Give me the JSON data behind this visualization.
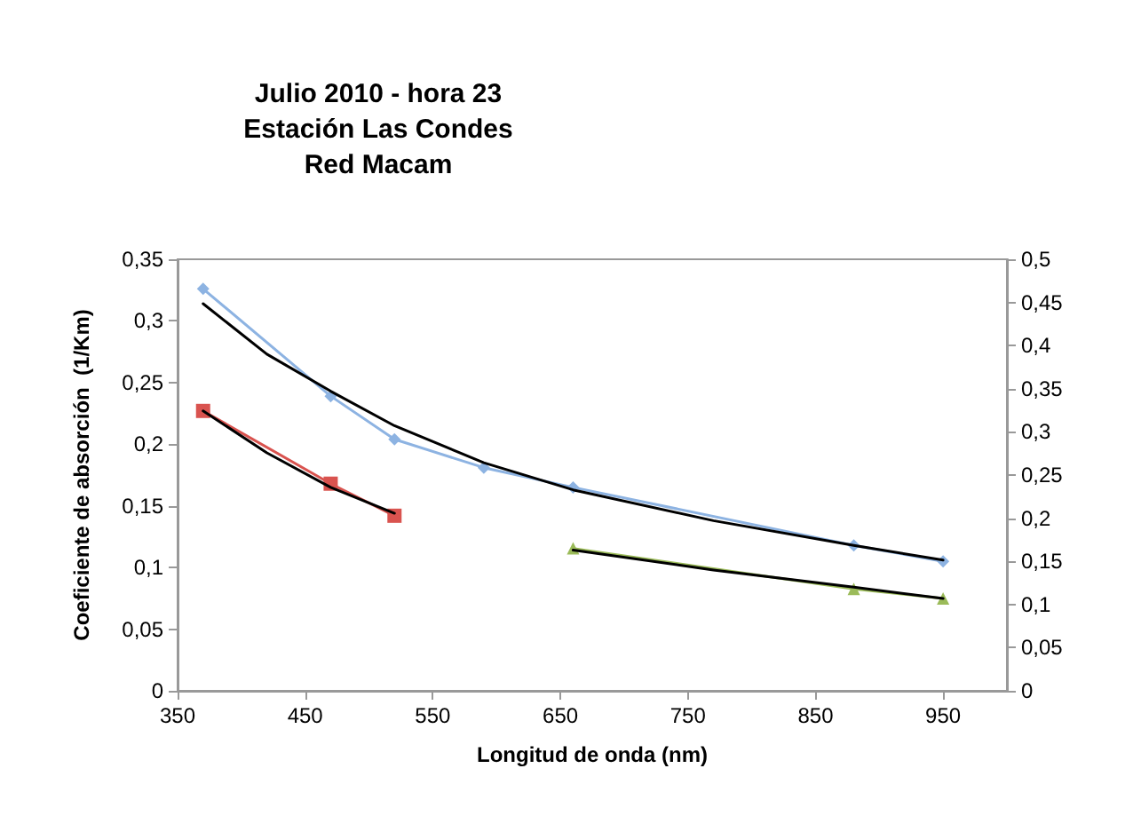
{
  "chart_data": {
    "type": "line",
    "title": "Julio 2010 - hora 23\nEstación Las Condes\nRed Macam",
    "xlabel": "Longitud de onda (nm)",
    "ylabel": "Coeficiente de absorción  (1/Km)",
    "xlim": [
      350,
      1000
    ],
    "xticks": [
      350,
      450,
      550,
      650,
      750,
      850,
      950
    ],
    "ylim": [
      0,
      0.35
    ],
    "yticks": [
      0,
      {
        "value": 0.05,
        "label": "0,05"
      },
      {
        "value": 0.1,
        "label": "0,1"
      },
      {
        "value": 0.15,
        "label": "0,15"
      },
      {
        "value": 0.2,
        "label": "0,2"
      },
      {
        "value": 0.25,
        "label": "0,25"
      },
      {
        "value": 0.3,
        "label": "0,3"
      },
      {
        "value": 0.35,
        "label": "0,35"
      }
    ],
    "y2lim": [
      0,
      0.5
    ],
    "y2ticks": [
      0,
      {
        "value": 0.05,
        "label": "0,05"
      },
      {
        "value": 0.1,
        "label": "0,1"
      },
      {
        "value": 0.15,
        "label": "0,15"
      },
      {
        "value": 0.2,
        "label": "0,2"
      },
      {
        "value": 0.25,
        "label": "0,25"
      },
      {
        "value": 0.3,
        "label": "0,3"
      },
      {
        "value": 0.35,
        "label": "0,35"
      },
      {
        "value": 0.4,
        "label": "0,4"
      },
      {
        "value": 0.45,
        "label": "0,45"
      },
      {
        "value": 0.5,
        "label": "0,5"
      }
    ],
    "grid": false,
    "series": [
      {
        "color": "#8db3e2",
        "marker": "diamond",
        "x": [
          370,
          470,
          520,
          590,
          660,
          880,
          950
        ],
        "values": [
          0.326,
          0.239,
          0.204,
          0.181,
          0.165,
          0.118,
          0.105
        ]
      },
      {
        "color": "#d9534f",
        "marker": "square",
        "x": [
          370,
          470,
          520
        ],
        "values": [
          0.227,
          0.168,
          0.142
        ]
      },
      {
        "color": "#9bbb59",
        "marker": "triangle",
        "axis": "y2",
        "x": [
          660,
          880,
          950
        ],
        "values": [
          0.165,
          0.118,
          0.107
        ]
      },
      {
        "color": "#000000",
        "marker": "none",
        "x": [
          370,
          420,
          470,
          520,
          590,
          660,
          770,
          880,
          950
        ],
        "values": [
          0.314,
          0.273,
          0.243,
          0.215,
          0.185,
          0.163,
          0.138,
          0.118,
          0.106
        ]
      },
      {
        "color": "#000000",
        "marker": "none",
        "x": [
          370,
          420,
          470,
          520
        ],
        "values": [
          0.227,
          0.193,
          0.165,
          0.144
        ]
      },
      {
        "color": "#000000",
        "marker": "none",
        "axis": "y2",
        "x": [
          660,
          770,
          880,
          950
        ],
        "values": [
          0.163,
          0.14,
          0.12,
          0.107
        ]
      }
    ]
  }
}
